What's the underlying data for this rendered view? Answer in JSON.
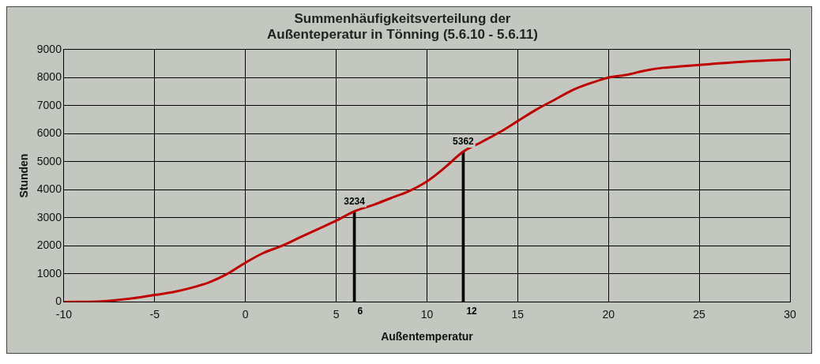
{
  "chart_data": {
    "type": "line",
    "title": "Summenhäufigkeitsverteilung der\nAußenteperatur in Tönning (5.6.10 - 5.6.11)",
    "xlabel": "Außentemperatur",
    "ylabel": "Stunden",
    "xlim": [
      -10,
      30
    ],
    "xticks": [
      -10,
      -5,
      0,
      5,
      10,
      15,
      20,
      25,
      30
    ],
    "ylim": [
      0,
      9000
    ],
    "yticks": [
      0,
      1000,
      2000,
      3000,
      4000,
      5000,
      6000,
      7000,
      8000,
      9000
    ],
    "grid": true,
    "legend": false,
    "series": [
      {
        "color": "#c00000",
        "x": [
          -10,
          -8,
          -6,
          -5,
          -4,
          -3,
          -2,
          -1,
          0,
          1,
          2,
          3,
          4,
          5,
          6,
          7,
          8,
          9,
          10,
          11,
          12,
          13,
          14,
          15,
          16,
          17,
          18,
          19,
          20,
          21,
          22,
          23,
          24,
          25,
          27,
          30
        ],
        "values": [
          0,
          20,
          150,
          250,
          350,
          500,
          700,
          1000,
          1400,
          1750,
          2000,
          2300,
          2600,
          2900,
          3230,
          3450,
          3700,
          3950,
          4300,
          4800,
          5360,
          5700,
          6050,
          6450,
          6850,
          7200,
          7550,
          7800,
          8000,
          8100,
          8250,
          8350,
          8400,
          8450,
          8550,
          8650
        ]
      },
      {
        "type": "bar",
        "color": "#000000",
        "x": [
          6,
          12
        ],
        "values": [
          3234,
          5362
        ],
        "value_labels": [
          "3234",
          "5362"
        ]
      }
    ],
    "annotations": [
      {
        "text": "6",
        "x": 6,
        "y": 0
      },
      {
        "text": "12",
        "x": 12,
        "y": 0
      }
    ]
  }
}
